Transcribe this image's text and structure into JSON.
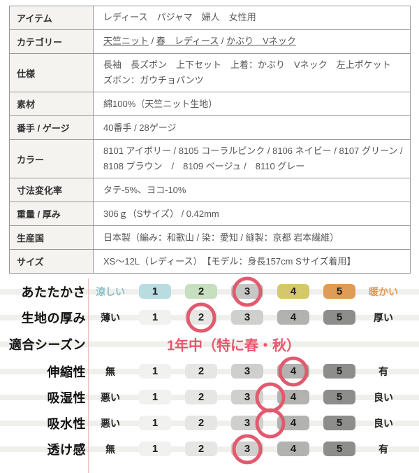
{
  "spec_table": {
    "rows": [
      {
        "label": "アイテム",
        "value": "レディース　パジャマ　婦人　女性用"
      },
      {
        "label": "カテゴリー",
        "links": [
          "天竺ニット",
          "春　レディース",
          "かぶり　Vネック"
        ]
      },
      {
        "label": "仕様",
        "value": "長袖　長ズボン　上下セット　上着：かぶり　Vネック　左上ポケット　ズボン：ガウチョパンツ"
      },
      {
        "label": "素材",
        "value": "綿100%（天竺ニット生地）"
      },
      {
        "label": "番手 / ゲージ",
        "value": "40番手 / 28ゲージ"
      },
      {
        "label": "カラー",
        "value": "8101 アイボリー / 8105 コーラルピンク / 8106 ネイビー / 8107 グリーン / 8108 ブラウン　/　8109 ベージュ /　8110 グレー"
      },
      {
        "label": "寸法変化率",
        "value": "タテ-5%、ヨコ-10%"
      },
      {
        "label": "重量 / 厚み",
        "value": "306ｇ（Sサイズ） / 0.42mm"
      },
      {
        "label": "生産国",
        "value": "日本製（編み：和歌山 / 染：愛知 / 縫製：京都 岩本繊維）"
      },
      {
        "label": "サイズ",
        "value": "XS〜12L（レディース）　【モデル：身長157cm Sサイズ着用】"
      }
    ]
  },
  "rating_chart": {
    "scale_numbers": [
      "1",
      "2",
      "3",
      "4",
      "5"
    ],
    "circle_color": "#e25a6e",
    "gray_boxes": [
      "#f1f1ef",
      "#e6e6e4",
      "#cfcfcd",
      "#b2b2b0",
      "#8d8d8b"
    ],
    "rows": [
      {
        "type": "scale",
        "label": "あたたかさ",
        "left": "涼しい",
        "right": "暖かい",
        "left_color": "#85bfca",
        "right_color": "#dd9a55",
        "box_colors": [
          "#b9dce1",
          "#c6dfbf",
          "#c6c6c4",
          "#d5c869",
          "#df9c55"
        ],
        "circle_at": 3
      },
      {
        "type": "scale",
        "label": "生地の厚み",
        "left": "薄い",
        "right": "厚い",
        "box_colors": [
          "#f1f1ef",
          "#e6e6e4",
          "#cfcfcd",
          "#b2b2b0",
          "#8d8d8b"
        ],
        "circle_at": 2
      },
      {
        "type": "text",
        "label": "適合シーズン",
        "text": "1年中（特に春・秋）",
        "text_color": "#e8556c"
      },
      {
        "type": "scale",
        "label": "伸縮性",
        "left": "無",
        "right": "有",
        "box_colors": [
          "#f1f1ef",
          "#e6e6e4",
          "#cfcfcd",
          "#b2b2b0",
          "#8d8d8b"
        ],
        "circle_at": 4
      },
      {
        "type": "scale",
        "label": "吸湿性",
        "left": "悪い",
        "right": "良い",
        "box_colors": [
          "#f1f1ef",
          "#e6e6e4",
          "#cfcfcd",
          "#b2b2b0",
          "#8d8d8b"
        ],
        "circle_at": 3.5
      },
      {
        "type": "scale",
        "label": "吸水性",
        "left": "悪い",
        "right": "良い",
        "box_colors": [
          "#f1f1ef",
          "#e6e6e4",
          "#cfcfcd",
          "#b2b2b0",
          "#8d8d8b"
        ],
        "circle_at": 3.5
      },
      {
        "type": "scale",
        "label": "透け感",
        "left": "無",
        "right": "有",
        "box_colors": [
          "#f1f1ef",
          "#e6e6e4",
          "#cfcfcd",
          "#b2b2b0",
          "#8d8d8b"
        ],
        "circle_at": 3
      }
    ]
  }
}
